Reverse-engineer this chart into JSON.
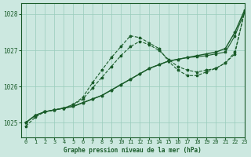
{
  "background_color": "#cce8e0",
  "grid_color": "#99ccbb",
  "line_color": "#1a5c2a",
  "title": "Graphe pression niveau de la mer (hPa)",
  "xlim": [
    -0.5,
    23
  ],
  "ylim": [
    1024.6,
    1028.3
  ],
  "yticks": [
    1025,
    1026,
    1027,
    1028
  ],
  "xticks": [
    0,
    1,
    2,
    3,
    4,
    5,
    6,
    7,
    8,
    9,
    10,
    11,
    12,
    13,
    14,
    15,
    16,
    17,
    18,
    19,
    20,
    21,
    22,
    23
  ],
  "series": [
    {
      "data": [
        1025.0,
        1025.2,
        1025.3,
        1025.35,
        1025.4,
        1025.45,
        1025.55,
        1025.65,
        1025.75,
        1025.9,
        1026.05,
        1026.2,
        1026.35,
        1026.5,
        1026.6,
        1026.7,
        1026.75,
        1026.8,
        1026.85,
        1026.9,
        1026.95,
        1027.05,
        1027.5,
        1028.1
      ],
      "linestyle": "-",
      "linewidth": 1.0
    },
    {
      "data": [
        1025.0,
        1025.2,
        1025.3,
        1025.35,
        1025.4,
        1025.45,
        1025.55,
        1025.65,
        1025.75,
        1025.9,
        1026.05,
        1026.2,
        1026.35,
        1026.5,
        1026.6,
        1026.7,
        1026.75,
        1026.8,
        1026.82,
        1026.85,
        1026.9,
        1026.95,
        1027.4,
        1028.05
      ],
      "linestyle": "-",
      "linewidth": 0.8
    },
    {
      "data": [
        1025.0,
        1025.2,
        1025.3,
        1025.35,
        1025.4,
        1025.5,
        1025.65,
        1025.95,
        1026.25,
        1026.55,
        1026.85,
        1027.1,
        1027.25,
        1027.15,
        1027.0,
        1026.75,
        1026.55,
        1026.45,
        1026.4,
        1026.45,
        1026.5,
        1026.65,
        1026.9,
        1028.05
      ],
      "linestyle": "--",
      "linewidth": 0.8
    },
    {
      "data": [
        1024.9,
        1025.15,
        1025.3,
        1025.35,
        1025.4,
        1025.5,
        1025.7,
        1026.1,
        1026.45,
        1026.8,
        1027.1,
        1027.4,
        1027.35,
        1027.2,
        1027.05,
        1026.7,
        1026.45,
        1026.3,
        1026.3,
        1026.4,
        1026.5,
        1026.65,
        1026.95,
        1028.05
      ],
      "linestyle": "--",
      "linewidth": 0.8
    }
  ]
}
